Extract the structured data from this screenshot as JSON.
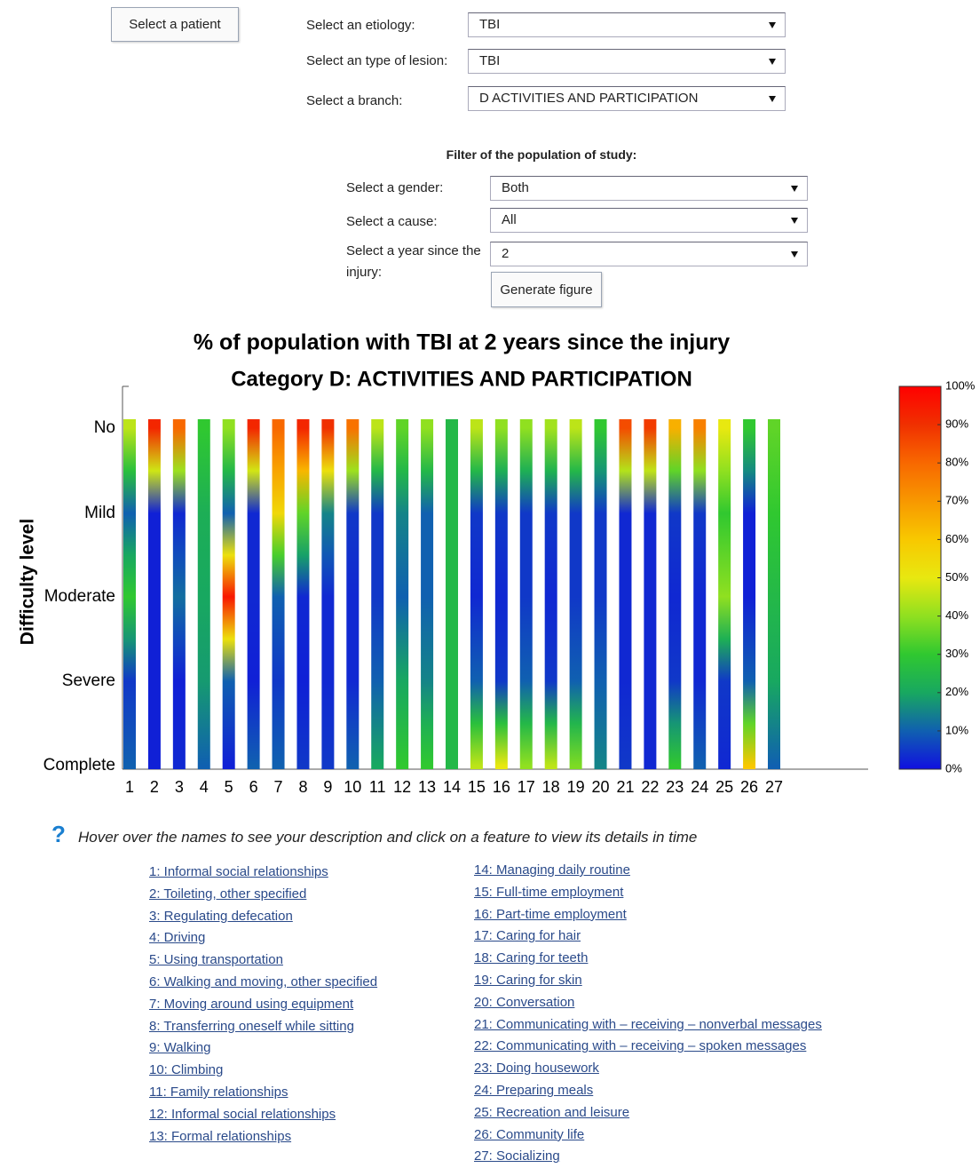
{
  "form": {
    "patient_button": "Select a patient",
    "fields": [
      {
        "label": "Select an etiology:",
        "value": "TBI"
      },
      {
        "label": "Select an type of lesion:",
        "value": "TBI"
      },
      {
        "label": "Select a branch:",
        "value": "D ACTIVITIES AND PARTICIPATION"
      }
    ],
    "filter_title": "Filter of the population of study:",
    "filters": [
      {
        "label": "Select a gender:",
        "value": "Both"
      },
      {
        "label": "Select a cause:",
        "value": "All"
      },
      {
        "label": "Select a year since the injury:",
        "value": "2"
      }
    ],
    "generate_button": "Generate figure"
  },
  "chart_data": {
    "type": "heatmap",
    "title": "% of population with TBI at 2 years since the injury",
    "subtitle": "Category D: ACTIVITIES AND PARTICIPATION",
    "y_label": "Difficulty level",
    "rows": [
      "No",
      "Mild",
      "Moderate",
      "Severe",
      "Complete"
    ],
    "categories": [
      "1",
      "2",
      "3",
      "4",
      "5",
      "6",
      "7",
      "8",
      "9",
      "10",
      "11",
      "12",
      "13",
      "14",
      "15",
      "16",
      "17",
      "18",
      "19",
      "20",
      "21",
      "22",
      "23",
      "24",
      "25",
      "26",
      "27"
    ],
    "values": [
      [
        45,
        10,
        30,
        5,
        10
      ],
      [
        92,
        2,
        2,
        2,
        2
      ],
      [
        80,
        3,
        12,
        2,
        3
      ],
      [
        30,
        22,
        20,
        18,
        10
      ],
      [
        40,
        10,
        95,
        10,
        2
      ],
      [
        92,
        3,
        3,
        2,
        10
      ],
      [
        80,
        55,
        10,
        5,
        10
      ],
      [
        92,
        35,
        3,
        2,
        5
      ],
      [
        90,
        15,
        3,
        3,
        5
      ],
      [
        78,
        5,
        3,
        3,
        10
      ],
      [
        45,
        5,
        5,
        10,
        20
      ],
      [
        35,
        15,
        10,
        20,
        30
      ],
      [
        40,
        10,
        10,
        15,
        30
      ],
      [
        25,
        25,
        25,
        25,
        25
      ],
      [
        45,
        5,
        3,
        10,
        45
      ],
      [
        40,
        5,
        3,
        5,
        50
      ],
      [
        40,
        5,
        5,
        10,
        40
      ],
      [
        42,
        5,
        3,
        5,
        45
      ],
      [
        45,
        5,
        5,
        10,
        38
      ],
      [
        30,
        5,
        5,
        10,
        15
      ],
      [
        85,
        3,
        3,
        3,
        5
      ],
      [
        88,
        3,
        3,
        3,
        3
      ],
      [
        65,
        5,
        3,
        5,
        30
      ],
      [
        75,
        5,
        3,
        3,
        10
      ],
      [
        50,
        30,
        40,
        5,
        3
      ],
      [
        30,
        2,
        2,
        10,
        60
      ],
      [
        35,
        30,
        25,
        20,
        10
      ]
    ],
    "clim": [
      0,
      100
    ],
    "cticks": [
      {
        "value": 0,
        "label": "0%"
      },
      {
        "value": 10,
        "label": "10%"
      },
      {
        "value": 20,
        "label": "20%"
      },
      {
        "value": 30,
        "label": "30%"
      },
      {
        "value": 40,
        "label": "40%"
      },
      {
        "value": 50,
        "label": "50%"
      },
      {
        "value": 60,
        "label": "60%"
      },
      {
        "value": 70,
        "label": "70%"
      },
      {
        "value": 80,
        "label": "80%"
      },
      {
        "value": 90,
        "label": "90%"
      },
      {
        "value": 100,
        "label": "100%"
      }
    ],
    "colormap": [
      "#1010e0",
      "#1060b0",
      "#18a860",
      "#30c830",
      "#90e020",
      "#e8e810",
      "#f8c800",
      "#f89800",
      "#f86800",
      "#f03000",
      "#ff0000"
    ]
  },
  "help": {
    "text": "Hover over the names to see your description and click on a feature to view its details in time",
    "items_left": [
      "1: Informal social relationships",
      "2: Toileting, other specified",
      "3: Regulating defecation",
      "4: Driving",
      "5: Using transportation",
      "6: Walking and moving, other specified",
      "7: Moving around using equipment",
      "8: Transferring oneself while sitting",
      "9: Walking",
      "10: Climbing",
      "11: Family relationships",
      "12: Informal social relationships",
      "13: Formal relationships"
    ],
    "items_right": [
      "14: Managing daily routine",
      "15: Full-time employment",
      "16: Part-time employment",
      "17: Caring for hair",
      "18: Caring for teeth",
      "19: Caring for skin",
      "20: Conversation",
      "21: Communicating with – receiving – nonverbal messages",
      "22: Communicating with – receiving – spoken messages",
      "23: Doing housework",
      "24: Preparing meals",
      "25: Recreation and leisure",
      "26: Community life",
      "27: Socializing"
    ]
  }
}
